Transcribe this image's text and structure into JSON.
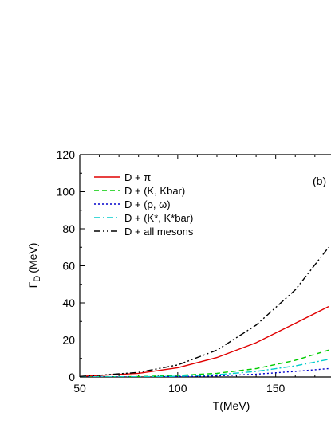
{
  "chart_data": {
    "type": "line",
    "panel_label": "(b)",
    "xlabel": "T(MeV)",
    "ylabel": "Γ",
    "ylabel_subscript": "D",
    "ylabel_unit": "(MeV)",
    "xlim": [
      50,
      177
    ],
    "ylim": [
      0,
      120
    ],
    "x_ticks": [
      50,
      100,
      150
    ],
    "y_ticks": [
      0,
      20,
      40,
      60,
      80,
      100,
      120
    ],
    "legend_position": "top-left",
    "series": [
      {
        "name": "D + π",
        "color": "#e00000",
        "dash": "solid",
        "x": [
          50,
          60,
          80,
          100,
          120,
          140,
          160,
          177
        ],
        "y": [
          0.3,
          0.8,
          2.0,
          5.0,
          10.5,
          18.5,
          29.0,
          38.0
        ]
      },
      {
        "name": "D + (K, Kbar)",
        "color": "#00cc00",
        "dash": "dashed",
        "x": [
          50,
          60,
          80,
          100,
          120,
          140,
          160,
          177
        ],
        "y": [
          0.0,
          0.05,
          0.2,
          0.8,
          2.0,
          4.5,
          9.0,
          14.5
        ]
      },
      {
        "name": "D + (ρ, ω)",
        "color": "#0000cc",
        "dash": "dotted",
        "x": [
          50,
          60,
          80,
          100,
          120,
          140,
          160,
          177
        ],
        "y": [
          0.0,
          0.0,
          0.05,
          0.2,
          0.6,
          1.5,
          3.0,
          4.5
        ]
      },
      {
        "name": "D + (K*, K*bar)",
        "color": "#00cccc",
        "dash": "dashdot",
        "x": [
          50,
          60,
          80,
          100,
          120,
          140,
          160,
          177
        ],
        "y": [
          0.0,
          0.0,
          0.1,
          0.4,
          1.2,
          3.0,
          6.0,
          9.5
        ]
      },
      {
        "name": "D + all mesons",
        "color": "#000000",
        "dash": "dashdotdot",
        "x": [
          50,
          60,
          80,
          100,
          120,
          140,
          160,
          177
        ],
        "y": [
          0.3,
          0.9,
          2.5,
          6.5,
          14.5,
          28.0,
          47.0,
          70.0
        ]
      }
    ]
  }
}
